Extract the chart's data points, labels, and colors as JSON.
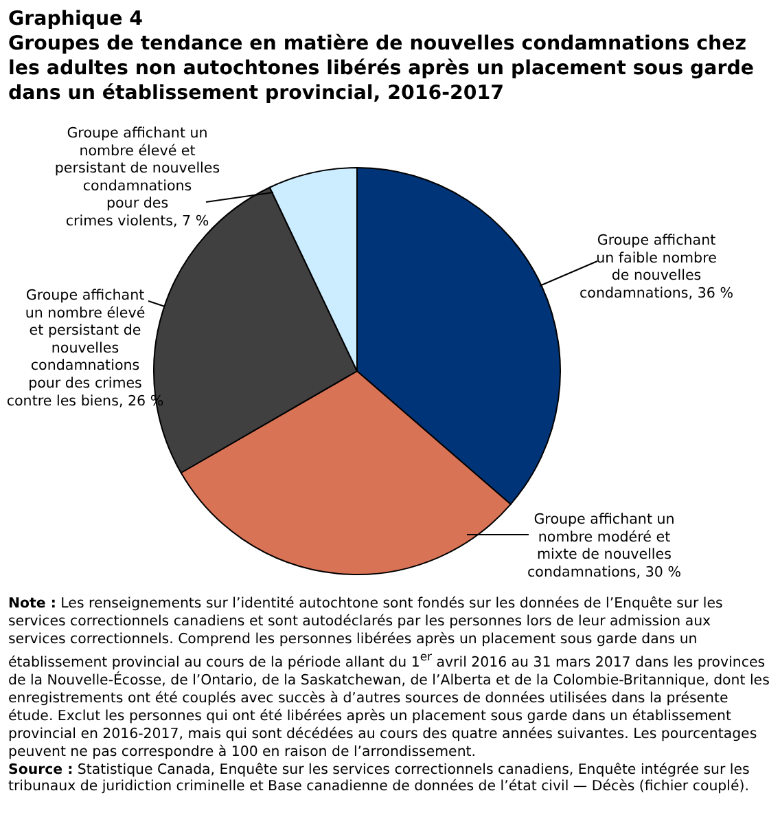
{
  "chart_data": {
    "type": "pie",
    "title": "Graphique 4",
    "subtitle": "Groupes de tendance en matière de nouvelles condamnations chez les adultes non autochtones libérés après un placement sous garde dans un établissement provincial, 2016-2017",
    "categories": [
      "Groupe affichant un faible nombre de nouvelles condamnations",
      "Groupe affichant un nombre modéré et mixte de nouvelles condamnations",
      "Groupe affichant un nombre élevé et persistant de nouvelles condamnations pour des crimes contre les biens",
      "Groupe affichant un nombre élevé et persistant de nouvelles condamnations pour des crimes violents"
    ],
    "values": [
      36,
      30,
      26,
      7
    ],
    "value_labels": [
      "36 %",
      "30 %",
      "26 %",
      "7 %"
    ],
    "colors": [
      "#003478",
      "#d97356",
      "#404040",
      "#ccecff"
    ],
    "annotations": [
      "Note : Les renseignements sur l’identité autochtone sont fondés sur les données de l’Enquête sur les services correctionnels canadiens et sont autodéclarés par les personnes lors de leur admission aux services correctionnels. Comprend les personnes libérées après un placement sous garde dans un établissement provincial au cours de la période allant du 1$^{er}$ avril 2016 au 31 mars 2017 dans les provinces de la Nouvelle-Écosse, de l’Ontario, de la Saskatchewan, de l’Alberta et de la Colombie-Britannique, dont les enregistrements ont été couplés avec succès à d’autres sources de données utilisées dans la présente étude. Exclut les personnes qui ont été libérées après un placement sous garde dans un établissement provincial en 2016-2017, mais qui sont décédées au cours des quatre années suivantes. Les pourcentages peuvent ne pas correspondre à 100 en raison de l’arrondissement.",
      "Source : Statistique Canada, Enquête sur les services correctionnels canadiens, Enquête intégrée sur les tribunaux de juridiction criminelle et Base canadienne de données de l’état civil — Décès (fichier couplé)."
    ]
  }
}
